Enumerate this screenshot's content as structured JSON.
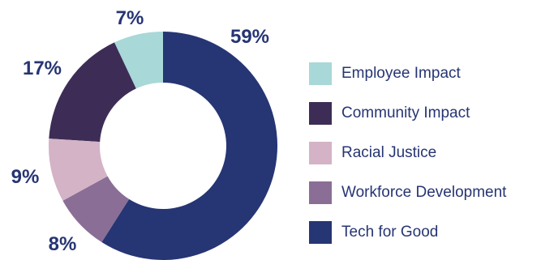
{
  "chart_data": {
    "type": "donut",
    "title": "",
    "segments": [
      {
        "name": "Employee Impact",
        "value": 7,
        "label": "7%",
        "color": "#a8d8d8"
      },
      {
        "name": "Community Impact",
        "value": 17,
        "label": "17%",
        "color": "#3d2d56"
      },
      {
        "name": "Racial Justice",
        "value": 9,
        "label": "9%",
        "color": "#d4b3c6"
      },
      {
        "name": "Workforce Development",
        "value": 8,
        "label": "8%",
        "color": "#8a6e96"
      },
      {
        "name": "Tech for Good",
        "value": 59,
        "label": "59%",
        "color": "#263573"
      }
    ],
    "legend_placement": "right",
    "start_angle_deg": 0,
    "draw_order": [
      4,
      3,
      2,
      1,
      0
    ]
  }
}
